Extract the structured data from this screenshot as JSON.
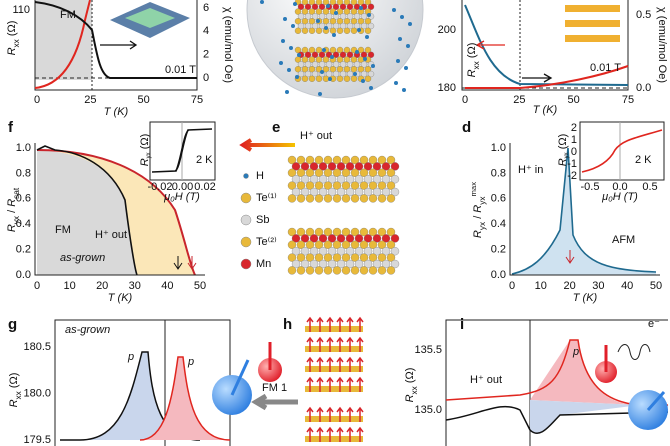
{
  "top_left": {
    "ylabel": {
      "main": "R",
      "sub": "xx",
      "unit": " (Ω)"
    },
    "y_left_ticks": [
      "110"
    ],
    "y_right_ticks": [
      "6",
      "4",
      "2",
      "0"
    ],
    "y_right_label": "χ (emu/mol Oe)",
    "xticks": [
      "0",
      "25",
      "50",
      "75"
    ],
    "xlabel": "T (K)",
    "phase": "FM",
    "field": "0.01 T"
  },
  "top_right": {
    "ylabel": {
      "main": "R",
      "sub": "xx",
      "unit": " (Ω)"
    },
    "y_left_ticks": [
      "200",
      "180"
    ],
    "y_right_ticks": [
      "0.5",
      "0.0"
    ],
    "y_right_label": "χ (emu/mol Oe)",
    "xticks": [
      "0",
      "25",
      "50",
      "75"
    ],
    "xlabel": "T (K)",
    "field": "0.01 T"
  },
  "f": {
    "label": "f",
    "ylabel": {
      "num": "R",
      "num_sub": "yx",
      "sep": " / ",
      "den": "R",
      "den_sub": "sat"
    },
    "yticks": [
      "1.0",
      "0.8",
      "0.6",
      "0.4",
      "0.2",
      "0.0"
    ],
    "xticks": [
      "0",
      "10",
      "20",
      "30",
      "40",
      "50"
    ],
    "xlabel": "T (K)",
    "phase": "FM",
    "as_grown": "as-grown",
    "h_out": "H⁺ out",
    "inset": {
      "ylabel": {
        "main": "R",
        "sub": "yx",
        "unit": " (Ω)"
      },
      "xticks": [
        "-0.02",
        "0.00",
        "0.02"
      ],
      "xlabel": "μ₀H (T)",
      "temp": "2 K"
    }
  },
  "e": {
    "label": "e",
    "h_out": "H⁺ out",
    "legend": [
      "H",
      "Te⁽¹⁾",
      "Sb",
      "Te⁽²⁾",
      "Mn"
    ]
  },
  "d": {
    "label": "d",
    "h_in": "H⁺ in",
    "phase": "AFM",
    "ylabel": {
      "num": "R",
      "num_sub": "yx",
      "sep": " / ",
      "den": "R",
      "den_sub": "yx",
      "den_sup": "max"
    },
    "yticks": [
      "1.0",
      "0.8",
      "0.6",
      "0.4",
      "0.2",
      "0.0"
    ],
    "xticks": [
      "0",
      "10",
      "20",
      "30",
      "40",
      "50"
    ],
    "xlabel": "T (K)",
    "inset": {
      "ylabel": {
        "main": "R",
        "sub": "yx",
        "unit": " (Ω)"
      },
      "yticks": [
        "2",
        "1",
        "0",
        "-1",
        "-2"
      ],
      "xticks": [
        "-0.5",
        "0.0",
        "0.5"
      ],
      "xlabel": "μ₀H (T)",
      "temp": "2 K"
    }
  },
  "g": {
    "label": "g",
    "as_grown": "as-grown",
    "peaks": [
      "p",
      "p"
    ],
    "yticks": [
      "180.5",
      "180.0",
      "179.5"
    ],
    "ylabel": {
      "main": "R",
      "sub": "xx",
      "unit": " (Ω)"
    }
  },
  "h": {
    "label": "h",
    "arrow": "FM 1"
  },
  "i": {
    "label": "i",
    "h_out": "H⁺ out",
    "peak": "p",
    "yticks": [
      "135.5",
      "135.0"
    ],
    "ylabel": {
      "main": "R",
      "sub": "xx",
      "unit": " (Ω)"
    },
    "electron": "e⁻"
  }
}
